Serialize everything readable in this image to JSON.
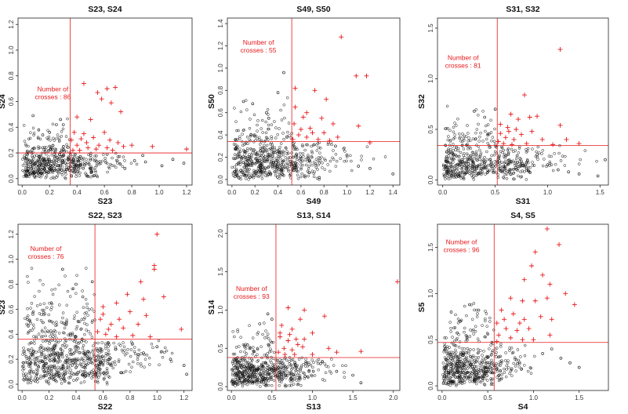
{
  "chart_data": [
    {
      "type": "scatter",
      "title": "S23, S24",
      "xlabel": "S23",
      "ylabel": "S24",
      "xlim": [
        -0.03,
        1.24
      ],
      "ylim": [
        -0.05,
        1.25
      ],
      "xticks": [
        "0.0",
        "0.2",
        "0.4",
        "0.6",
        "0.8",
        "1.0",
        "1.2"
      ],
      "xtick_values": [
        0,
        0.2,
        0.4,
        0.6,
        0.8,
        1.0,
        1.2
      ],
      "yticks": [
        "0.0",
        "0.2",
        "0.4",
        "0.6",
        "0.8",
        "1.0",
        "1.2"
      ],
      "ytick_values": [
        0,
        0.2,
        0.4,
        0.6,
        0.8,
        1.0,
        1.2
      ],
      "x_threshold": 0.35,
      "y_threshold": 0.2,
      "annotation_label": "Number of",
      "annotation_value": "crosses : 86",
      "bulk": {
        "n": 520,
        "xmax": 1.0,
        "ymax": 0.55,
        "density": 2.2
      },
      "crosses": [
        [
          0.45,
          0.74
        ],
        [
          0.55,
          0.67
        ],
        [
          0.62,
          0.7
        ],
        [
          0.68,
          0.71
        ],
        [
          0.4,
          0.48
        ],
        [
          0.5,
          0.46
        ],
        [
          0.58,
          0.62
        ],
        [
          0.65,
          0.59
        ],
        [
          0.72,
          0.52
        ],
        [
          0.38,
          0.36
        ],
        [
          0.43,
          0.31
        ],
        [
          0.47,
          0.28
        ],
        [
          0.52,
          0.32
        ],
        [
          0.56,
          0.26
        ],
        [
          0.6,
          0.36
        ],
        [
          0.64,
          0.3
        ],
        [
          0.7,
          0.28
        ],
        [
          0.74,
          0.25
        ],
        [
          0.8,
          0.26
        ],
        [
          0.95,
          0.25
        ],
        [
          1.2,
          0.23
        ],
        [
          0.4,
          0.26
        ],
        [
          0.37,
          0.22
        ],
        [
          0.42,
          0.22
        ],
        [
          0.48,
          0.24
        ],
        [
          0.54,
          0.23
        ],
        [
          0.36,
          0.3
        ],
        [
          0.45,
          0.35
        ],
        [
          0.62,
          0.24
        ],
        [
          0.66,
          0.22
        ]
      ],
      "black_points": [
        [
          0.35,
          0.2
        ],
        [
          0.5,
          0.18
        ],
        [
          0.62,
          0.19
        ],
        [
          0.7,
          0.17
        ],
        [
          0.82,
          0.14
        ],
        [
          0.88,
          0.18
        ],
        [
          0.9,
          0.13
        ],
        [
          0.75,
          0.08
        ],
        [
          1.02,
          0.1
        ],
        [
          1.1,
          0.15
        ],
        [
          1.18,
          0.12
        ],
        [
          0.25,
          0.42
        ],
        [
          0.28,
          0.46
        ],
        [
          0.3,
          0.42
        ],
        [
          0.08,
          0.49
        ],
        [
          0.2,
          0.36
        ],
        [
          0.15,
          0.34
        ]
      ]
    },
    {
      "type": "scatter",
      "title": "S49, S50",
      "xlabel": "S49",
      "ylabel": "S50",
      "xlim": [
        -0.04,
        1.46
      ],
      "ylim": [
        -0.05,
        1.45
      ],
      "xticks": [
        "0.0",
        "0.2",
        "0.4",
        "0.6",
        "0.8",
        "1.0",
        "1.2",
        "1.4"
      ],
      "xtick_values": [
        0,
        0.2,
        0.4,
        0.6,
        0.8,
        1.0,
        1.2,
        1.4
      ],
      "yticks": [
        "0.0",
        "0.2",
        "0.4",
        "0.6",
        "0.8",
        "1.0",
        "1.2",
        "1.4"
      ],
      "ytick_values": [
        0,
        0.2,
        0.4,
        0.6,
        0.8,
        1.0,
        1.2,
        1.4
      ],
      "x_threshold": 0.52,
      "y_threshold": 0.34,
      "annotation_label": "Number of",
      "annotation_value": "crosses : 55",
      "bulk": {
        "n": 620,
        "xmax": 1.4,
        "ymax": 0.75,
        "density": 2.0
      },
      "crosses": [
        [
          0.95,
          1.28
        ],
        [
          1.08,
          0.93
        ],
        [
          1.17,
          0.93
        ],
        [
          0.55,
          0.82
        ],
        [
          0.72,
          0.8
        ],
        [
          0.82,
          0.72
        ],
        [
          0.55,
          0.65
        ],
        [
          0.65,
          0.6
        ],
        [
          0.78,
          0.55
        ],
        [
          0.88,
          0.5
        ],
        [
          1.1,
          0.48
        ],
        [
          0.6,
          0.45
        ],
        [
          0.7,
          0.42
        ],
        [
          0.58,
          0.4
        ],
        [
          0.65,
          0.38
        ],
        [
          0.75,
          0.36
        ],
        [
          0.85,
          0.35
        ],
        [
          0.92,
          0.38
        ],
        [
          0.53,
          0.36
        ],
        [
          1.2,
          0.33
        ],
        [
          0.54,
          0.5
        ],
        [
          0.68,
          0.46
        ],
        [
          0.8,
          0.42
        ],
        [
          0.62,
          0.56
        ]
      ],
      "black_points": [
        [
          0.45,
          0.96
        ],
        [
          0.1,
          0.7
        ],
        [
          0.18,
          0.68
        ],
        [
          0.3,
          0.6
        ],
        [
          0.9,
          0.3
        ],
        [
          1.0,
          0.22
        ],
        [
          1.1,
          0.12
        ],
        [
          1.2,
          0.1
        ],
        [
          1.4,
          0.05
        ],
        [
          0.32,
          0.55
        ],
        [
          0.4,
          0.78
        ]
      ]
    },
    {
      "type": "scatter",
      "title": "S31, S32",
      "xlabel": "S31",
      "ylabel": "S32",
      "xlim": [
        -0.05,
        1.58
      ],
      "ylim": [
        -0.05,
        1.6
      ],
      "xticks": [
        "0.0",
        "0.5",
        "1.0",
        "1.5"
      ],
      "xtick_values": [
        0,
        0.5,
        1.0,
        1.5
      ],
      "yticks": [
        "0.0",
        "0.5",
        "1.0",
        "1.5"
      ],
      "ytick_values": [
        0,
        0.5,
        1.0,
        1.5
      ],
      "x_threshold": 0.52,
      "y_threshold": 0.34,
      "annotation_label": "Number of",
      "annotation_value": "crosses : 81",
      "bulk": {
        "n": 560,
        "xmax": 1.5,
        "ymax": 0.75,
        "density": 2.0
      },
      "crosses": [
        [
          1.12,
          1.29
        ],
        [
          0.78,
          0.84
        ],
        [
          0.65,
          0.65
        ],
        [
          0.9,
          0.63
        ],
        [
          0.55,
          0.55
        ],
        [
          0.62,
          0.52
        ],
        [
          0.72,
          0.6
        ],
        [
          0.83,
          0.62
        ],
        [
          1.12,
          0.54
        ],
        [
          0.55,
          0.46
        ],
        [
          0.6,
          0.42
        ],
        [
          0.68,
          0.4
        ],
        [
          0.75,
          0.45
        ],
        [
          0.85,
          0.48
        ],
        [
          0.95,
          0.4
        ],
        [
          1.18,
          0.4
        ],
        [
          0.58,
          0.36
        ],
        [
          0.66,
          0.35
        ],
        [
          0.8,
          0.36
        ],
        [
          1.05,
          0.35
        ],
        [
          1.3,
          0.36
        ],
        [
          0.53,
          0.38
        ],
        [
          0.63,
          0.48
        ],
        [
          0.7,
          0.5
        ]
      ],
      "black_points": [
        [
          0.5,
          0.7
        ],
        [
          0.4,
          0.62
        ],
        [
          0.3,
          0.68
        ],
        [
          0.9,
          0.25
        ],
        [
          1.0,
          0.15
        ],
        [
          1.1,
          0.1
        ],
        [
          1.2,
          0.08
        ],
        [
          1.3,
          0.06
        ],
        [
          1.55,
          0.2
        ],
        [
          1.48,
          0.04
        ]
      ]
    },
    {
      "type": "scatter",
      "title": "S22, S23",
      "xlabel": "S22",
      "ylabel": "S23",
      "xlim": [
        -0.03,
        1.26
      ],
      "ylim": [
        -0.05,
        1.28
      ],
      "xticks": [
        "0.0",
        "0.2",
        "0.4",
        "0.6",
        "0.8",
        "1.0",
        "1.2"
      ],
      "xtick_values": [
        0,
        0.2,
        0.4,
        0.6,
        0.8,
        1.0,
        1.2
      ],
      "yticks": [
        "0.0",
        "0.2",
        "0.4",
        "0.6",
        "0.8",
        "1.0",
        "1.2"
      ],
      "ytick_values": [
        0,
        0.2,
        0.4,
        0.6,
        0.8,
        1.0,
        1.2
      ],
      "x_threshold": 0.54,
      "y_threshold": 0.36,
      "annotation_label": "Number of",
      "annotation_value": "crosses : 76",
      "bulk": {
        "n": 760,
        "xmax": 1.2,
        "ymax": 0.95,
        "density": 1.7
      },
      "crosses": [
        [
          1.0,
          1.2
        ],
        [
          0.98,
          0.95
        ],
        [
          0.98,
          0.92
        ],
        [
          0.88,
          0.82
        ],
        [
          0.78,
          0.72
        ],
        [
          0.9,
          0.68
        ],
        [
          1.05,
          0.7
        ],
        [
          0.7,
          0.65
        ],
        [
          0.6,
          0.62
        ],
        [
          0.8,
          0.58
        ],
        [
          0.92,
          0.55
        ],
        [
          0.58,
          0.52
        ],
        [
          0.66,
          0.48
        ],
        [
          0.75,
          0.45
        ],
        [
          0.86,
          0.48
        ],
        [
          1.18,
          0.44
        ],
        [
          0.56,
          0.42
        ],
        [
          0.62,
          0.4
        ],
        [
          0.7,
          0.38
        ],
        [
          0.82,
          0.39
        ],
        [
          0.95,
          0.38
        ],
        [
          0.6,
          0.56
        ],
        [
          0.72,
          0.52
        ],
        [
          0.64,
          0.44
        ]
      ],
      "black_points": [
        [
          0.52,
          0.82
        ],
        [
          0.4,
          0.8
        ],
        [
          0.3,
          0.92
        ],
        [
          0.45,
          0.7
        ],
        [
          1.0,
          0.3
        ],
        [
          1.1,
          0.2
        ],
        [
          1.2,
          0.15
        ],
        [
          1.22,
          0.08
        ],
        [
          0.9,
          0.25
        ]
      ]
    },
    {
      "type": "scatter",
      "title": "S13, S14",
      "xlabel": "S13",
      "ylabel": "S14",
      "xlim": [
        -0.05,
        2.08
      ],
      "ylim": [
        -0.05,
        2.12
      ],
      "xticks": [
        "0.0",
        "0.5",
        "1.0",
        "1.5",
        "2.0"
      ],
      "xtick_values": [
        0,
        0.5,
        1.0,
        1.5,
        2.0
      ],
      "yticks": [
        "0.0",
        "0.5",
        "1.0",
        "1.5",
        "2.0"
      ],
      "ytick_values": [
        0,
        0.5,
        1.0,
        1.5,
        2.0
      ],
      "x_threshold": 0.55,
      "y_threshold": 0.38,
      "annotation_label": "Number of",
      "annotation_value": "crosses : 93",
      "bulk": {
        "n": 580,
        "xmax": 1.6,
        "ymax": 0.9,
        "density": 2.1
      },
      "crosses": [
        [
          2.05,
          1.37
        ],
        [
          0.7,
          1.03
        ],
        [
          0.9,
          1.0
        ],
        [
          1.15,
          0.92
        ],
        [
          0.62,
          0.8
        ],
        [
          0.75,
          0.75
        ],
        [
          0.85,
          0.88
        ],
        [
          1.0,
          0.7
        ],
        [
          0.6,
          0.65
        ],
        [
          0.7,
          0.6
        ],
        [
          0.8,
          0.62
        ],
        [
          0.65,
          0.5
        ],
        [
          0.75,
          0.48
        ],
        [
          0.88,
          0.52
        ],
        [
          1.2,
          0.5
        ],
        [
          0.58,
          0.45
        ],
        [
          0.66,
          0.42
        ],
        [
          0.78,
          0.42
        ],
        [
          1.0,
          0.42
        ],
        [
          1.3,
          0.45
        ],
        [
          1.6,
          0.46
        ],
        [
          0.6,
          0.7
        ],
        [
          0.72,
          0.68
        ],
        [
          0.82,
          0.55
        ],
        [
          0.9,
          0.62
        ]
      ],
      "black_points": [
        [
          0.5,
          0.88
        ],
        [
          0.45,
          0.95
        ],
        [
          0.35,
          0.82
        ],
        [
          1.1,
          0.3
        ],
        [
          1.3,
          0.2
        ],
        [
          1.5,
          0.15
        ],
        [
          1.6,
          0.05
        ]
      ]
    },
    {
      "type": "scatter",
      "title": "S4, S5",
      "xlabel": "S4",
      "ylabel": "S5",
      "xlim": [
        -0.05,
        1.82
      ],
      "ylim": [
        -0.05,
        1.75
      ],
      "xticks": [
        "0.0",
        "0.5",
        "1.0",
        "1.5"
      ],
      "xtick_values": [
        0,
        0.5,
        1.0,
        1.5
      ],
      "yticks": [
        "0.0",
        "0.5",
        "1.0",
        "1.5"
      ],
      "ytick_values": [
        0,
        0.5,
        1.0,
        1.5
      ],
      "x_threshold": 0.57,
      "y_threshold": 0.47,
      "annotation_label": "Number of",
      "annotation_value": "crosses : 96",
      "bulk": {
        "n": 560,
        "xmax": 1.2,
        "ymax": 0.95,
        "density": 1.9
      },
      "crosses": [
        [
          1.15,
          1.7
        ],
        [
          1.28,
          1.53
        ],
        [
          1.02,
          1.45
        ],
        [
          0.98,
          1.3
        ],
        [
          1.1,
          1.2
        ],
        [
          0.9,
          1.15
        ],
        [
          1.18,
          1.1
        ],
        [
          1.35,
          1.0
        ],
        [
          0.75,
          0.95
        ],
        [
          0.88,
          0.92
        ],
        [
          1.02,
          0.92
        ],
        [
          1.15,
          0.95
        ],
        [
          1.45,
          0.88
        ],
        [
          0.65,
          0.82
        ],
        [
          0.78,
          0.78
        ],
        [
          0.9,
          0.72
        ],
        [
          1.08,
          0.75
        ],
        [
          1.2,
          0.72
        ],
        [
          0.6,
          0.68
        ],
        [
          0.7,
          0.62
        ],
        [
          0.82,
          0.6
        ],
        [
          0.95,
          0.62
        ],
        [
          1.18,
          0.55
        ],
        [
          0.62,
          0.55
        ],
        [
          0.75,
          0.52
        ],
        [
          0.88,
          0.5
        ],
        [
          1.0,
          0.5
        ],
        [
          0.6,
          0.48
        ],
        [
          0.68,
          0.72
        ],
        [
          0.85,
          0.68
        ]
      ],
      "black_points": [
        [
          0.1,
          0.8
        ],
        [
          0.2,
          0.7
        ],
        [
          0.3,
          0.88
        ],
        [
          0.4,
          0.82
        ],
        [
          1.2,
          0.4
        ],
        [
          1.3,
          0.3
        ],
        [
          1.4,
          0.25
        ],
        [
          1.5,
          0.2
        ],
        [
          1.1,
          0.35
        ]
      ]
    }
  ]
}
